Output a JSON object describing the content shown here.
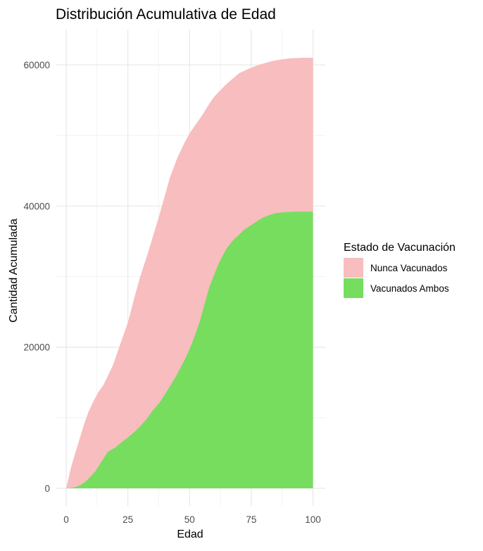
{
  "chart_data": {
    "type": "area",
    "stacked": true,
    "title": "Distribución Acumulativa de Edad",
    "xlabel": "Edad",
    "ylabel": "Cantidad Acumulada",
    "xlim": [
      -4,
      105
    ],
    "ylim": [
      -2500,
      65000
    ],
    "xticks": [
      0,
      25,
      50,
      75,
      100
    ],
    "yticks": [
      0,
      20000,
      40000,
      60000
    ],
    "grid": true,
    "legend": {
      "title": "Estado de Vacunación",
      "position": "right"
    },
    "series": [
      {
        "name": "Vacunados Ambos",
        "color": "#77DD5F",
        "points": [
          [
            0,
            0
          ],
          [
            2,
            50
          ],
          [
            4,
            200
          ],
          [
            6,
            500
          ],
          [
            8,
            1000
          ],
          [
            10,
            1700
          ],
          [
            12,
            2500
          ],
          [
            14,
            3600
          ],
          [
            16,
            4700
          ],
          [
            17,
            5200
          ],
          [
            20,
            5800
          ],
          [
            22,
            6400
          ],
          [
            25,
            7200
          ],
          [
            28,
            8100
          ],
          [
            30,
            8800
          ],
          [
            33,
            10000
          ],
          [
            35,
            11000
          ],
          [
            38,
            12200
          ],
          [
            40,
            13300
          ],
          [
            43,
            15000
          ],
          [
            45,
            16200
          ],
          [
            48,
            18200
          ],
          [
            50,
            19700
          ],
          [
            52,
            21500
          ],
          [
            54,
            23500
          ],
          [
            56,
            26000
          ],
          [
            58,
            28500
          ],
          [
            60,
            30300
          ],
          [
            62,
            32000
          ],
          [
            65,
            34000
          ],
          [
            68,
            35300
          ],
          [
            70,
            35900
          ],
          [
            72,
            36600
          ],
          [
            75,
            37300
          ],
          [
            78,
            38000
          ],
          [
            80,
            38400
          ],
          [
            83,
            38800
          ],
          [
            85,
            39000
          ],
          [
            88,
            39100
          ],
          [
            90,
            39150
          ],
          [
            93,
            39200
          ],
          [
            95,
            39200
          ],
          [
            100,
            39200
          ]
        ]
      },
      {
        "name": "Nunca Vacunados",
        "color": "#F8BDBE",
        "cumulative_total_points": [
          [
            0,
            0
          ],
          [
            1,
            1500
          ],
          [
            2,
            3000
          ],
          [
            3,
            4200
          ],
          [
            5,
            6500
          ],
          [
            7,
            8800
          ],
          [
            9,
            10800
          ],
          [
            11,
            12300
          ],
          [
            13,
            13600
          ],
          [
            15,
            14600
          ],
          [
            17,
            16000
          ],
          [
            19,
            17500
          ],
          [
            20,
            18500
          ],
          [
            22,
            20500
          ],
          [
            25,
            23500
          ],
          [
            28,
            27500
          ],
          [
            30,
            30000
          ],
          [
            33,
            33200
          ],
          [
            35,
            35500
          ],
          [
            38,
            39000
          ],
          [
            40,
            41500
          ],
          [
            42,
            44000
          ],
          [
            45,
            46800
          ],
          [
            48,
            49000
          ],
          [
            50,
            50300
          ],
          [
            53,
            51800
          ],
          [
            55,
            52800
          ],
          [
            58,
            54500
          ],
          [
            60,
            55500
          ],
          [
            63,
            56600
          ],
          [
            65,
            57300
          ],
          [
            68,
            58200
          ],
          [
            70,
            58800
          ],
          [
            73,
            59300
          ],
          [
            75,
            59600
          ],
          [
            78,
            60000
          ],
          [
            80,
            60200
          ],
          [
            83,
            60500
          ],
          [
            85,
            60650
          ],
          [
            88,
            60800
          ],
          [
            90,
            60900
          ],
          [
            93,
            60950
          ],
          [
            95,
            61000
          ],
          [
            100,
            61000
          ]
        ]
      }
    ]
  }
}
